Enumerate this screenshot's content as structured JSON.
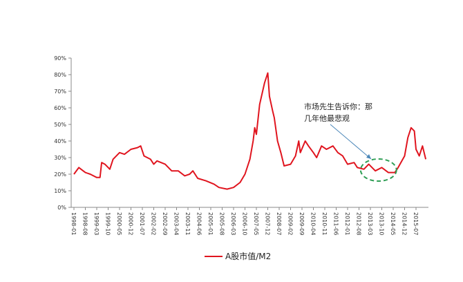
{
  "chart_data": {
    "type": "line",
    "title": "",
    "xlabel": "",
    "ylabel": "",
    "ylim": [
      0,
      90
    ],
    "y_ticks": [
      "0%",
      "10%",
      "20%",
      "30%",
      "40%",
      "50%",
      "60%",
      "70%",
      "80%",
      "90%"
    ],
    "x_ticks": [
      "1998-01",
      "1998-08",
      "1999-03",
      "1999-10",
      "2000-05",
      "2000-12",
      "2001-07",
      "2002-02",
      "2002-09",
      "2003-04",
      "2003-11",
      "2004-06",
      "2005-01",
      "2005-08",
      "2006-03",
      "2006-10",
      "2007-05",
      "2007-12",
      "2008-07",
      "2009-02",
      "2009-09",
      "2010-04",
      "2010-11",
      "2011-06",
      "2012-01",
      "2012-08",
      "2013-03",
      "2013-10",
      "2014-05",
      "2014-12",
      "2015-07"
    ],
    "grid": false,
    "legend_position": "bottom",
    "series": [
      {
        "name": "A股市值/M2",
        "color": "#e0141e",
        "points": [
          [
            "1998-01",
            20
          ],
          [
            "1998-04",
            24
          ],
          [
            "1998-08",
            21
          ],
          [
            "1998-11",
            20
          ],
          [
            "1999-03",
            18
          ],
          [
            "1999-05",
            18
          ],
          [
            "1999-06",
            27
          ],
          [
            "1999-08",
            26
          ],
          [
            "1999-11",
            23
          ],
          [
            "2000-01",
            29
          ],
          [
            "2000-05",
            33
          ],
          [
            "2000-08",
            32
          ],
          [
            "2000-12",
            35
          ],
          [
            "2001-04",
            36
          ],
          [
            "2001-06",
            37
          ],
          [
            "2001-08",
            31
          ],
          [
            "2001-12",
            29
          ],
          [
            "2002-02",
            26
          ],
          [
            "2002-04",
            28
          ],
          [
            "2002-09",
            26
          ],
          [
            "2003-01",
            22
          ],
          [
            "2003-05",
            22
          ],
          [
            "2003-09",
            19
          ],
          [
            "2003-12",
            20
          ],
          [
            "2004-02",
            22
          ],
          [
            "2004-05",
            17.5
          ],
          [
            "2004-10",
            16
          ],
          [
            "2005-03",
            14
          ],
          [
            "2005-06",
            12
          ],
          [
            "2005-11",
            11
          ],
          [
            "2006-03",
            12
          ],
          [
            "2006-07",
            15
          ],
          [
            "2006-10",
            20
          ],
          [
            "2007-01",
            29
          ],
          [
            "2007-03",
            40
          ],
          [
            "2007-04",
            48
          ],
          [
            "2007-05",
            44
          ],
          [
            "2007-07",
            62
          ],
          [
            "2007-10",
            75
          ],
          [
            "2007-12",
            81
          ],
          [
            "2008-01",
            67
          ],
          [
            "2008-03",
            58
          ],
          [
            "2008-04",
            54
          ],
          [
            "2008-06",
            40
          ],
          [
            "2008-08",
            33
          ],
          [
            "2008-10",
            25
          ],
          [
            "2009-02",
            26
          ],
          [
            "2009-05",
            31
          ],
          [
            "2009-07",
            40
          ],
          [
            "2009-08",
            33
          ],
          [
            "2009-11",
            40
          ],
          [
            "2010-01",
            37
          ],
          [
            "2010-04",
            33
          ],
          [
            "2010-06",
            30
          ],
          [
            "2010-09",
            37
          ],
          [
            "2010-12",
            35
          ],
          [
            "2011-04",
            37
          ],
          [
            "2011-07",
            33
          ],
          [
            "2011-10",
            31
          ],
          [
            "2012-01",
            26
          ],
          [
            "2012-05",
            27
          ],
          [
            "2012-07",
            24
          ],
          [
            "2012-11",
            23
          ],
          [
            "2013-02",
            26
          ],
          [
            "2013-06",
            22
          ],
          [
            "2013-10",
            24
          ],
          [
            "2014-02",
            21
          ],
          [
            "2014-06",
            21
          ],
          [
            "2014-08",
            24
          ],
          [
            "2014-12",
            31
          ],
          [
            "2015-02",
            42
          ],
          [
            "2015-04",
            48
          ],
          [
            "2015-06",
            46
          ],
          [
            "2015-07",
            35
          ],
          [
            "2015-09",
            31
          ],
          [
            "2015-11",
            37
          ],
          [
            "2016-01",
            29
          ]
        ]
      }
    ],
    "annotation": {
      "line1": "市场先生告诉你：那",
      "line2": "几年他最悲观",
      "arrow_color": "#4a86b8",
      "ellipse_color": "#2f9e55",
      "highlight_range": [
        "2012-09",
        "2014-07"
      ]
    }
  }
}
